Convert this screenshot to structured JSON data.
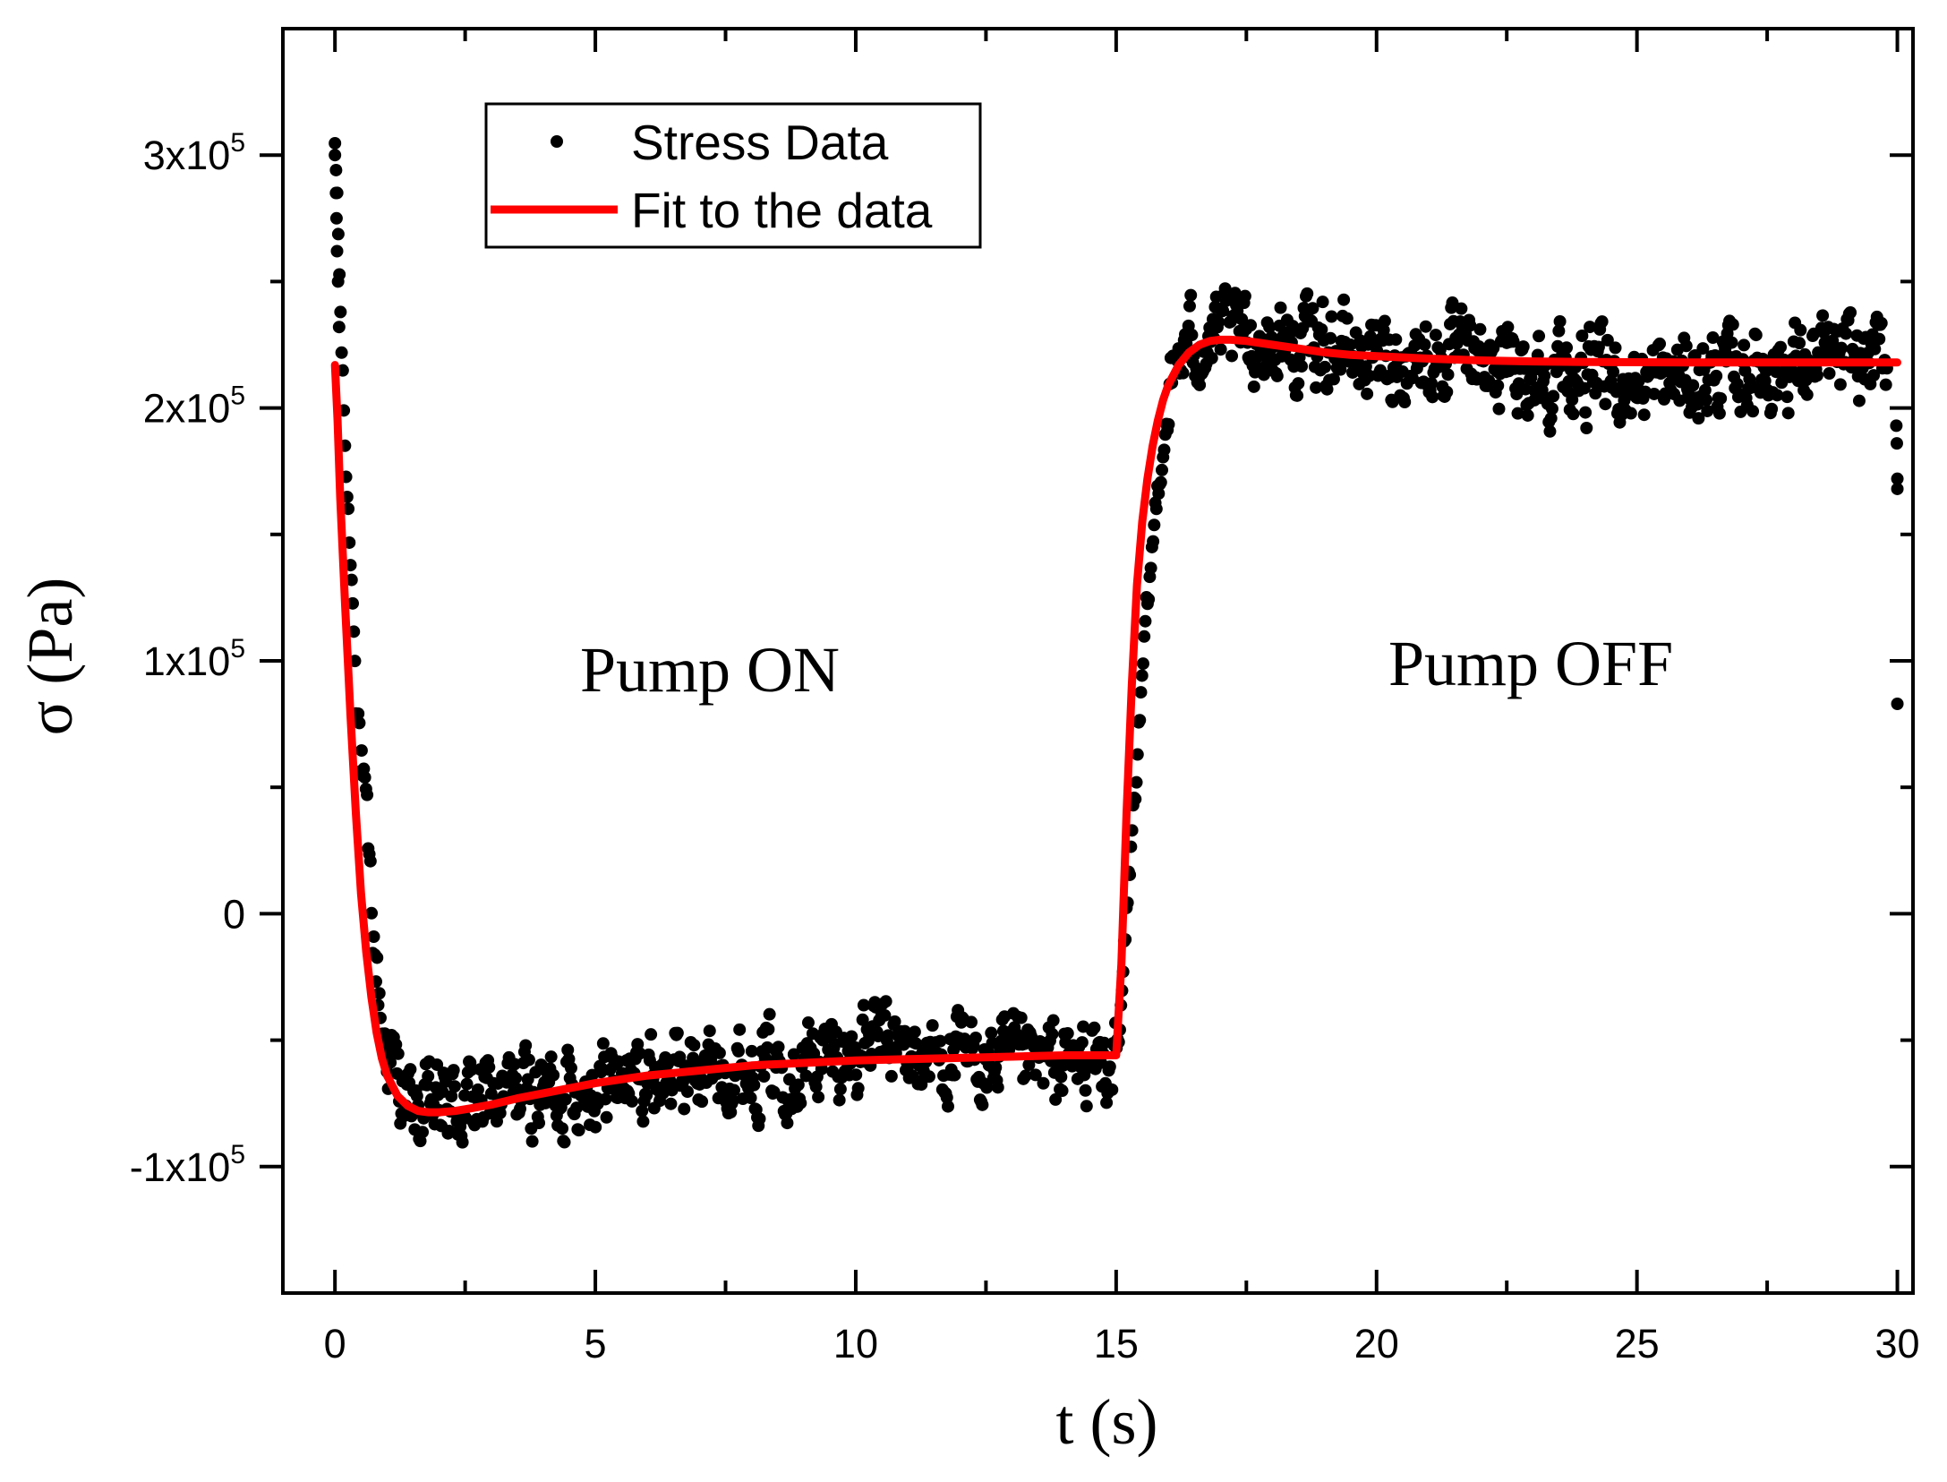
{
  "chart_data": {
    "type": "scatter",
    "xlabel": "t (s)",
    "ylabel": "σ (Pa)",
    "xlim": [
      -1,
      30.3
    ],
    "ylim": [
      -150000,
      350000
    ],
    "grid": false,
    "legend_position": "top-left",
    "x_ticks": [
      {
        "value": 0,
        "label": "0"
      },
      {
        "value": 5,
        "label": "5"
      },
      {
        "value": 10,
        "label": "10"
      },
      {
        "value": 15,
        "label": "15"
      },
      {
        "value": 20,
        "label": "20"
      },
      {
        "value": 25,
        "label": "25"
      },
      {
        "value": 30,
        "label": "30"
      }
    ],
    "y_ticks": [
      {
        "value": -100000,
        "mantissa": "-1x10",
        "exponent": "5"
      },
      {
        "value": 0,
        "mantissa": "0",
        "exponent": ""
      },
      {
        "value": 100000,
        "mantissa": "1x10",
        "exponent": "5"
      },
      {
        "value": 200000,
        "mantissa": "2x10",
        "exponent": "5"
      },
      {
        "value": 300000,
        "mantissa": "3x10",
        "exponent": "5"
      }
    ],
    "annotations": [
      "Pump ON",
      "Pump OFF"
    ],
    "series": [
      {
        "name": "Stress Data",
        "kind": "scatter",
        "color": "#000000",
        "noise_amplitude": 12000,
        "x": [
          0,
          0.05,
          0.1,
          0.2,
          0.35,
          0.5,
          0.7,
          0.9,
          1.2,
          1.5,
          1.8,
          2.2,
          2.8,
          3.5,
          4.2,
          5,
          6,
          7,
          8,
          9,
          10,
          10.5,
          11,
          12,
          13,
          14,
          14.5,
          14.85,
          15.05,
          15.2,
          15.4,
          15.6,
          15.8,
          16,
          16.2,
          16.5,
          17,
          17.5,
          18,
          18.5,
          19,
          19.5,
          20,
          21,
          22,
          23,
          24,
          25,
          26,
          27,
          28,
          29,
          29.8,
          30
        ],
        "y": [
          300000,
          280000,
          240000,
          180000,
          120000,
          60000,
          0,
          -45000,
          -65000,
          -80000,
          -78000,
          -76000,
          -74000,
          -71000,
          -69000,
          -66000,
          -64000,
          -62000,
          -60000,
          -58000,
          -55000,
          -50000,
          -56000,
          -58000,
          -60000,
          -60000,
          -58000,
          -60000,
          -55000,
          0,
          60000,
          120000,
          170000,
          200000,
          220000,
          226000,
          228000,
          228000,
          226000,
          224000,
          226000,
          222000,
          220000,
          220000,
          217000,
          215000,
          213000,
          210000,
          212000,
          215000,
          217000,
          218000,
          220000,
          190000
        ]
      },
      {
        "name": "Fit to the data",
        "kind": "line",
        "color": "#ff0000",
        "x": [
          0,
          0.05,
          0.1,
          0.2,
          0.3,
          0.4,
          0.5,
          0.6,
          0.7,
          0.8,
          0.9,
          1.0,
          1.2,
          1.4,
          1.6,
          1.8,
          2.0,
          2.3,
          2.6,
          3.0,
          3.5,
          4,
          5,
          6,
          7,
          8,
          9,
          10,
          11,
          12,
          13,
          14,
          14.8,
          15.0,
          15.1,
          15.2,
          15.3,
          15.4,
          15.5,
          15.6,
          15.7,
          15.8,
          15.9,
          16.0,
          16.2,
          16.4,
          16.6,
          16.8,
          17.0,
          17.2,
          17.5,
          18,
          18.5,
          19,
          19.5,
          20,
          21,
          22,
          23,
          24,
          25,
          26,
          27,
          28,
          29,
          30
        ],
        "y": [
          217000,
          195000,
          165000,
          120000,
          78000,
          40000,
          8000,
          -15000,
          -33000,
          -47000,
          -57000,
          -64000,
          -72000,
          -76000,
          -78000,
          -78500,
          -78500,
          -78000,
          -77000,
          -75500,
          -73000,
          -71000,
          -67000,
          -64000,
          -62000,
          -60000,
          -59000,
          -58000,
          -57500,
          -57000,
          -56500,
          -56000,
          -56000,
          -56000,
          -20000,
          40000,
          90000,
          130000,
          155000,
          172000,
          185000,
          195000,
          203000,
          209000,
          217000,
          222000,
          225000,
          226500,
          227000,
          227000,
          226500,
          225000,
          223500,
          222000,
          221000,
          220500,
          219500,
          218800,
          218400,
          218200,
          218100,
          218000,
          218000,
          218000,
          218000,
          218000
        ]
      }
    ]
  }
}
